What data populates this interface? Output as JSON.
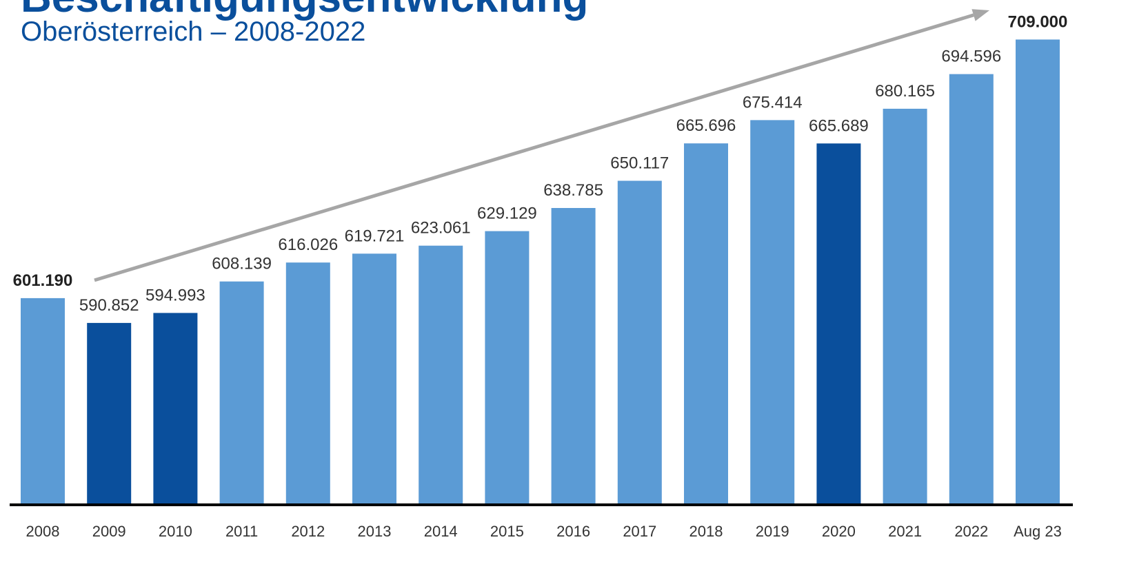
{
  "page": {
    "title": "Beschäftigungsentwicklung",
    "subtitle": "Oberösterreich – 2008-2022"
  },
  "colors": {
    "bar_light": "#5b9bd5",
    "bar_dark": "#0a4f9c",
    "arrow": "#a6a6a6",
    "axis": "#000000",
    "label_text": "#333333"
  },
  "chart_data": {
    "type": "bar",
    "title": "Beschäftigungsentwicklung",
    "subtitle": "Oberösterreich – 2008-2022",
    "xlabel": "",
    "ylabel": "",
    "categories": [
      "2008",
      "2009",
      "2010",
      "2011",
      "2012",
      "2013",
      "2014",
      "2015",
      "2016",
      "2017",
      "2018",
      "2019",
      "2020",
      "2021",
      "2022",
      "Aug 23"
    ],
    "values": [
      601190,
      590852,
      594993,
      608139,
      616026,
      619721,
      623061,
      629129,
      638785,
      650117,
      665696,
      675414,
      665689,
      680165,
      694596,
      709000
    ],
    "value_labels": [
      "601.190",
      "590.852",
      "594.993",
      "608.139",
      "616.026",
      "619.721",
      "623.061",
      "629.129",
      "638.785",
      "650.117",
      "665.696",
      "675.414",
      "665.689",
      "680.165",
      "694.596",
      "709.000"
    ],
    "highlighted_categories": [
      "2009",
      "2010",
      "2020"
    ],
    "bold_labels": [
      "2008",
      "Aug 23"
    ],
    "trend_arrow": {
      "from": "2008",
      "to": "Aug 23"
    },
    "ylim": [
      515000,
      712000
    ],
    "grid": false,
    "legend": "none"
  }
}
